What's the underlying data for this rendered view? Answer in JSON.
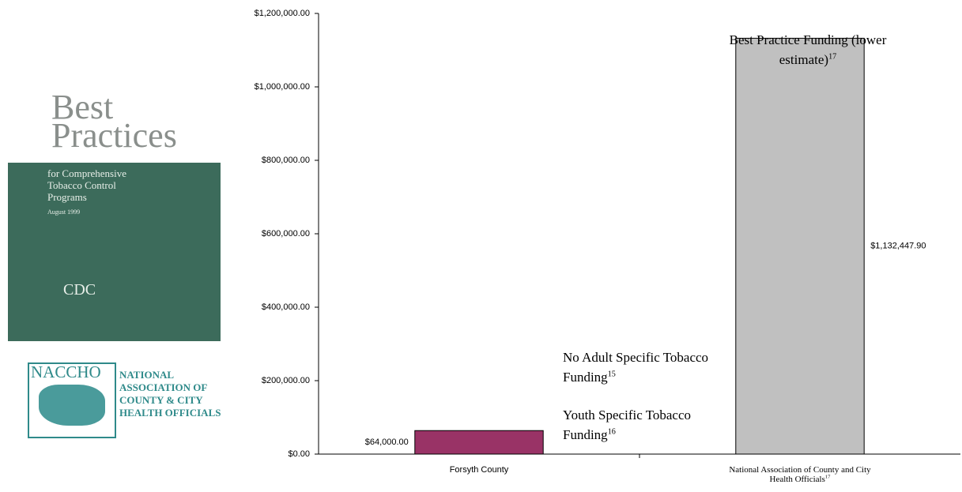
{
  "chart_data": {
    "type": "bar",
    "categories": [
      "Forsyth County",
      "National Association of County and City Health Officials"
    ],
    "category_superscripts": [
      null,
      "17"
    ],
    "values": [
      64000,
      1132447.9
    ],
    "value_labels": [
      "$64,000.00",
      "$1,132,447.90"
    ],
    "colors": [
      "#993366",
      "#c0c0c0"
    ],
    "ylim": [
      0,
      1200000
    ],
    "yticks": [
      {
        "value": 0,
        "label": "$0.00"
      },
      {
        "value": 200000,
        "label": "$200,000.00"
      },
      {
        "value": 400000,
        "label": "$400,000.00"
      },
      {
        "value": 600000,
        "label": "$600,000.00"
      },
      {
        "value": 800000,
        "label": "$800,000.00"
      },
      {
        "value": 1000000,
        "label": "$1,000,000.00"
      },
      {
        "value": 1200000,
        "label": "$1,200,000.00"
      }
    ],
    "grid": false,
    "annotations": [
      {
        "text": "Best Practice Funding (lower estimate)",
        "sup": "17"
      },
      {
        "text": "No Adult Specific Tobacco Funding",
        "sup": "15"
      },
      {
        "text": "Youth Specific Tobacco Funding",
        "sup": "16"
      }
    ]
  },
  "sidebar": {
    "cover": {
      "title": [
        "Best",
        "Practices"
      ],
      "subtitle": [
        "for Comprehensive",
        "Tobacco Control",
        "Programs"
      ],
      "date": "August 1999",
      "agency": "CDC"
    },
    "logo": {
      "acronym": "NACCHO",
      "name": [
        "NATIONAL",
        "ASSOCIATION OF",
        "COUNTY & CITY",
        "HEALTH OFFICIALS"
      ]
    }
  }
}
